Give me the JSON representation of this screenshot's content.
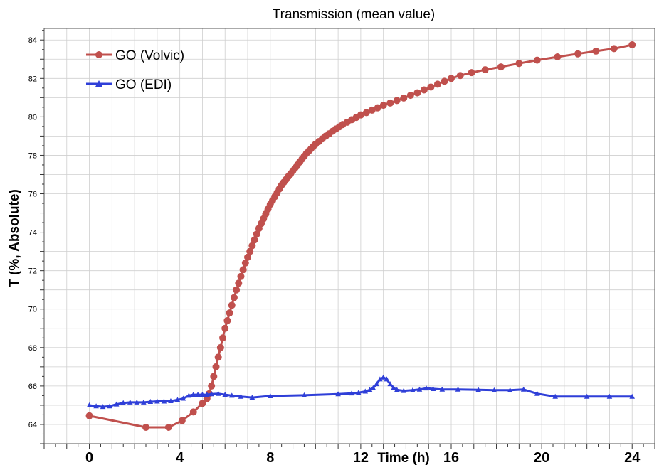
{
  "colors": {
    "volvic": "#c0504d",
    "edi": "#2f3fd8",
    "grid": "#cfcfcf"
  },
  "chart_data": {
    "type": "line",
    "title": "Transmission (mean value)",
    "xlabel": "Time (h)",
    "ylabel": "T (%, Absolute)",
    "xlim": [
      -2,
      25
    ],
    "ylim": [
      63,
      84.6
    ],
    "xticks": [
      0,
      4,
      8,
      12,
      16,
      20,
      24
    ],
    "yticks": [
      64,
      66,
      68,
      70,
      72,
      74,
      76,
      78,
      80,
      82,
      84
    ],
    "grid": true,
    "legend_position": "top-left",
    "series": [
      {
        "name": "GO (Volvic)",
        "color": "#c0504d",
        "marker": "circle",
        "points": [
          [
            0,
            64.45
          ],
          [
            2.5,
            63.85
          ],
          [
            3.5,
            63.85
          ],
          [
            4.1,
            64.2
          ],
          [
            4.6,
            64.65
          ],
          [
            5.0,
            65.1
          ],
          [
            5.2,
            65.35
          ],
          [
            5.3,
            65.6
          ],
          [
            5.4,
            66.0
          ],
          [
            5.5,
            66.5
          ],
          [
            5.6,
            67.0
          ],
          [
            5.7,
            67.5
          ],
          [
            5.8,
            68.0
          ],
          [
            5.9,
            68.5
          ],
          [
            6.0,
            69.0
          ],
          [
            6.1,
            69.4
          ],
          [
            6.2,
            69.8
          ],
          [
            6.3,
            70.2
          ],
          [
            6.4,
            70.6
          ],
          [
            6.5,
            71.0
          ],
          [
            6.6,
            71.35
          ],
          [
            6.7,
            71.7
          ],
          [
            6.8,
            72.05
          ],
          [
            6.9,
            72.4
          ],
          [
            7.0,
            72.7
          ],
          [
            7.1,
            73.0
          ],
          [
            7.2,
            73.3
          ],
          [
            7.3,
            73.6
          ],
          [
            7.4,
            73.9
          ],
          [
            7.5,
            74.2
          ],
          [
            7.6,
            74.45
          ],
          [
            7.7,
            74.7
          ],
          [
            7.8,
            74.95
          ],
          [
            7.9,
            75.2
          ],
          [
            8.0,
            75.45
          ],
          [
            8.1,
            75.65
          ],
          [
            8.2,
            75.85
          ],
          [
            8.3,
            76.05
          ],
          [
            8.4,
            76.25
          ],
          [
            8.5,
            76.45
          ],
          [
            8.6,
            76.6
          ],
          [
            8.7,
            76.75
          ],
          [
            8.8,
            76.9
          ],
          [
            8.9,
            77.05
          ],
          [
            9.0,
            77.2
          ],
          [
            9.1,
            77.35
          ],
          [
            9.2,
            77.5
          ],
          [
            9.3,
            77.65
          ],
          [
            9.4,
            77.8
          ],
          [
            9.5,
            77.95
          ],
          [
            9.6,
            78.1
          ],
          [
            9.7,
            78.22
          ],
          [
            9.8,
            78.34
          ],
          [
            9.9,
            78.46
          ],
          [
            10.0,
            78.58
          ],
          [
            10.15,
            78.72
          ],
          [
            10.3,
            78.86
          ],
          [
            10.45,
            79.0
          ],
          [
            10.6,
            79.12
          ],
          [
            10.75,
            79.25
          ],
          [
            10.9,
            79.37
          ],
          [
            11.05,
            79.48
          ],
          [
            11.2,
            79.6
          ],
          [
            11.4,
            79.72
          ],
          [
            11.6,
            79.85
          ],
          [
            11.8,
            79.97
          ],
          [
            12.0,
            80.1
          ],
          [
            12.25,
            80.22
          ],
          [
            12.5,
            80.35
          ],
          [
            12.75,
            80.47
          ],
          [
            13.0,
            80.6
          ],
          [
            13.3,
            80.72
          ],
          [
            13.6,
            80.85
          ],
          [
            13.9,
            80.98
          ],
          [
            14.2,
            81.12
          ],
          [
            14.5,
            81.25
          ],
          [
            14.8,
            81.4
          ],
          [
            15.1,
            81.55
          ],
          [
            15.4,
            81.7
          ],
          [
            15.7,
            81.85
          ],
          [
            16.0,
            82.0
          ],
          [
            16.4,
            82.15
          ],
          [
            16.9,
            82.3
          ],
          [
            17.5,
            82.45
          ],
          [
            18.2,
            82.6
          ],
          [
            19.0,
            82.78
          ],
          [
            19.8,
            82.95
          ],
          [
            20.7,
            83.12
          ],
          [
            21.6,
            83.28
          ],
          [
            22.4,
            83.42
          ],
          [
            23.2,
            83.55
          ],
          [
            24.0,
            83.75
          ]
        ]
      },
      {
        "name": "GO (EDI)",
        "color": "#2f3fd8",
        "marker": "triangle",
        "points": [
          [
            0,
            65.0
          ],
          [
            0.3,
            64.95
          ],
          [
            0.6,
            64.92
          ],
          [
            0.9,
            64.95
          ],
          [
            1.2,
            65.05
          ],
          [
            1.5,
            65.12
          ],
          [
            1.8,
            65.15
          ],
          [
            2.1,
            65.15
          ],
          [
            2.4,
            65.15
          ],
          [
            2.7,
            65.18
          ],
          [
            3.0,
            65.2
          ],
          [
            3.3,
            65.2
          ],
          [
            3.6,
            65.22
          ],
          [
            3.9,
            65.28
          ],
          [
            4.15,
            65.35
          ],
          [
            4.4,
            65.5
          ],
          [
            4.6,
            65.55
          ],
          [
            4.8,
            65.55
          ],
          [
            5.0,
            65.55
          ],
          [
            5.2,
            65.55
          ],
          [
            5.4,
            65.58
          ],
          [
            5.7,
            65.6
          ],
          [
            6.0,
            65.55
          ],
          [
            6.3,
            65.5
          ],
          [
            6.7,
            65.45
          ],
          [
            7.2,
            65.4
          ],
          [
            8.0,
            65.48
          ],
          [
            9.5,
            65.52
          ],
          [
            11.0,
            65.58
          ],
          [
            11.6,
            65.62
          ],
          [
            11.9,
            65.65
          ],
          [
            12.2,
            65.72
          ],
          [
            12.4,
            65.8
          ],
          [
            12.55,
            65.9
          ],
          [
            12.7,
            66.1
          ],
          [
            12.85,
            66.35
          ],
          [
            13.0,
            66.45
          ],
          [
            13.15,
            66.35
          ],
          [
            13.3,
            66.1
          ],
          [
            13.45,
            65.9
          ],
          [
            13.6,
            65.8
          ],
          [
            13.9,
            65.75
          ],
          [
            14.3,
            65.78
          ],
          [
            14.6,
            65.82
          ],
          [
            14.9,
            65.88
          ],
          [
            15.2,
            65.85
          ],
          [
            15.6,
            65.82
          ],
          [
            16.3,
            65.82
          ],
          [
            17.2,
            65.8
          ],
          [
            17.9,
            65.78
          ],
          [
            18.6,
            65.78
          ],
          [
            19.2,
            65.82
          ],
          [
            19.8,
            65.6
          ],
          [
            20.6,
            65.45
          ],
          [
            22.0,
            65.45
          ],
          [
            23.0,
            65.45
          ],
          [
            24.0,
            65.45
          ]
        ]
      }
    ]
  }
}
